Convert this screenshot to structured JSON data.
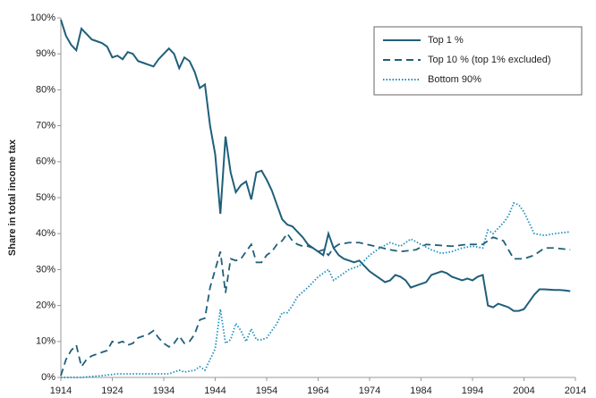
{
  "chart_data": {
    "type": "line",
    "y_label": "Share in total income tax",
    "xlim": [
      1914,
      2014
    ],
    "xticks": [
      1914,
      1924,
      1934,
      1944,
      1954,
      1964,
      1974,
      1984,
      1994,
      2004,
      2014
    ],
    "ylim": [
      0,
      100
    ],
    "yticks": [
      {
        "value": 0,
        "label": "0%"
      },
      {
        "value": 10,
        "label": "10%"
      },
      {
        "value": 20,
        "label": "20%"
      },
      {
        "value": 30,
        "label": "30%"
      },
      {
        "value": 40,
        "label": "40%"
      },
      {
        "value": 50,
        "label": "50%"
      },
      {
        "value": 60,
        "label": "60%"
      },
      {
        "value": 70,
        "label": "70%"
      },
      {
        "value": 80,
        "label": "80%"
      },
      {
        "value": 90,
        "label": "90%"
      },
      {
        "value": 100,
        "label": "100%"
      }
    ],
    "grid": false,
    "legend": "upper right",
    "series": [
      {
        "name": "Top 1 %",
        "color": "#1f5f7a",
        "style": "solid",
        "x": [
          1914,
          1915,
          1916,
          1917,
          1918,
          1919,
          1920,
          1921,
          1922,
          1923,
          1924,
          1925,
          1926,
          1927,
          1928,
          1929,
          1930,
          1931,
          1932,
          1933,
          1934,
          1935,
          1936,
          1937,
          1938,
          1939,
          1940,
          1941,
          1942,
          1943,
          1944,
          1945,
          1946,
          1947,
          1948,
          1949,
          1950,
          1951,
          1952,
          1953,
          1954,
          1955,
          1956,
          1957,
          1958,
          1959,
          1960,
          1961,
          1962,
          1963,
          1964,
          1965,
          1966,
          1967,
          1968,
          1969,
          1970,
          1971,
          1972,
          1973,
          1974,
          1975,
          1976,
          1977,
          1978,
          1979,
          1980,
          1981,
          1982,
          1983,
          1984,
          1985,
          1986,
          1987,
          1988,
          1989,
          1990,
          1991,
          1992,
          1993,
          1994,
          1995,
          1996,
          1997,
          1998,
          1999,
          2000,
          2001,
          2002,
          2003,
          2004,
          2005,
          2006,
          2007,
          2008,
          2009,
          2010,
          2011,
          2012,
          2013
        ],
        "values": [
          99.5,
          95,
          92.5,
          91,
          97,
          95.5,
          94,
          93.5,
          93,
          92,
          89,
          89.5,
          88.5,
          90.5,
          90,
          88,
          87.5,
          87,
          86.5,
          88.5,
          90,
          91.5,
          90,
          86,
          89,
          88,
          85,
          80.5,
          81.5,
          70,
          62,
          45.5,
          67,
          57,
          51.5,
          53.5,
          54.5,
          49.5,
          57,
          57.5,
          55,
          52,
          48,
          44,
          42.5,
          42,
          40.5,
          39,
          37,
          36,
          35,
          34,
          40,
          36,
          34,
          33,
          32.5,
          32,
          32.5,
          31,
          29.5,
          28.5,
          27.5,
          26.5,
          27,
          28.5,
          28,
          27,
          25,
          25.5,
          26,
          26.5,
          28.5,
          29,
          29.5,
          29,
          28,
          27.5,
          27,
          27.5,
          27,
          28,
          28.5,
          20,
          19.5,
          20.5,
          20,
          19.5,
          18.5,
          18.5,
          19,
          21,
          23,
          24.5,
          24.5,
          24.4,
          24.3,
          24.3,
          24.2,
          24
        ]
      },
      {
        "name": "Top 10 % (top 1% excluded)",
        "color": "#1f5f7a",
        "style": "dashed",
        "x": [
          1914,
          1915,
          1916,
          1917,
          1918,
          1919,
          1920,
          1921,
          1922,
          1923,
          1924,
          1925,
          1926,
          1927,
          1928,
          1929,
          1930,
          1931,
          1932,
          1933,
          1934,
          1935,
          1936,
          1937,
          1938,
          1939,
          1940,
          1941,
          1942,
          1943,
          1944,
          1945,
          1946,
          1947,
          1948,
          1949,
          1950,
          1951,
          1952,
          1953,
          1954,
          1955,
          1956,
          1957,
          1958,
          1959,
          1960,
          1961,
          1962,
          1963,
          1964,
          1965,
          1966,
          1967,
          1968,
          1970,
          1972,
          1975,
          1978,
          1980,
          1983,
          1985,
          1990,
          1993,
          1996,
          1998,
          2000,
          2002,
          2004,
          2006,
          2008,
          2010,
          2013
        ],
        "values": [
          0.5,
          5,
          7.5,
          9,
          3,
          5,
          6,
          6.5,
          7,
          7.5,
          10,
          9.5,
          10,
          9,
          9.5,
          11,
          11.5,
          12,
          13,
          11,
          9.5,
          8.5,
          9.5,
          11.5,
          9.5,
          10,
          12,
          16,
          16.5,
          25,
          30,
          35,
          23.5,
          33,
          32.5,
          33,
          35,
          37,
          32,
          32,
          34,
          35,
          37,
          38,
          40,
          38,
          37,
          36.5,
          36.5,
          36,
          35,
          35.5,
          34,
          36,
          37,
          37.5,
          37.5,
          36.5,
          35.5,
          35,
          35.5,
          37,
          36.5,
          37,
          37,
          39,
          38,
          33,
          33,
          34,
          36,
          36,
          35.5
        ]
      },
      {
        "name": "Bottom 90%",
        "color": "#1f8fc0",
        "style": "dotted",
        "x": [
          1914,
          1918,
          1922,
          1925,
          1930,
          1935,
          1937,
          1938,
          1940,
          1941,
          1942,
          1943,
          1944,
          1945,
          1946,
          1947,
          1948,
          1949,
          1950,
          1951,
          1952,
          1953,
          1954,
          1955,
          1956,
          1957,
          1958,
          1959,
          1960,
          1962,
          1964,
          1966,
          1967,
          1968,
          1970,
          1972,
          1974,
          1976,
          1978,
          1980,
          1982,
          1984,
          1986,
          1988,
          1990,
          1992,
          1994,
          1996,
          1997,
          1998,
          2000,
          2001,
          2002,
          2003,
          2004,
          2006,
          2008,
          2010,
          2013
        ],
        "values": [
          0,
          0,
          0.5,
          1,
          1,
          1,
          2,
          1.5,
          2,
          3,
          2,
          5,
          8,
          19,
          9.5,
          10.5,
          15,
          13,
          10,
          13.5,
          10.5,
          10.5,
          11,
          13,
          15,
          18,
          18,
          20,
          22.5,
          25,
          28,
          30,
          27,
          28,
          30,
          31,
          34,
          36,
          37.5,
          36.5,
          38.5,
          37,
          35.5,
          34.5,
          35,
          36,
          36.5,
          36,
          41,
          40,
          43,
          45,
          48.5,
          48,
          46,
          40,
          39.5,
          40,
          40.5
        ]
      }
    ]
  }
}
